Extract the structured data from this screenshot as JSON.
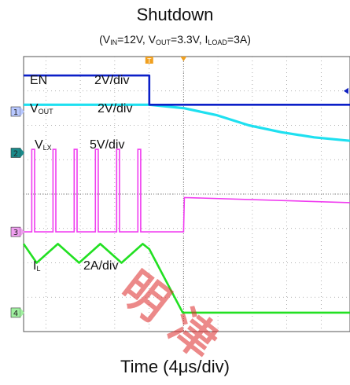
{
  "figure": {
    "title": "Shutdown",
    "subtitle": {
      "vin_prefix": "(V",
      "vin_sub": "IN",
      "vin_value": "=12V, V",
      "vout_sub": "OUT",
      "vout_value": "=3.3V, I",
      "iload_sub": "LOAD",
      "iload_value": "=3A)"
    },
    "xlabel": "Time (4μs/div)",
    "watermark": "明 津"
  },
  "channels": {
    "en": {
      "name": "EN",
      "scale": "2V/div",
      "color": "#0b1fc8"
    },
    "vout": {
      "name_main": "V",
      "name_sub": "OUT",
      "scale": "2V/div",
      "color": "#1ee0f0"
    },
    "vlx": {
      "name_main": "V",
      "name_sub": "LX",
      "scale": "5V/div",
      "color": "#f03cf0"
    },
    "il": {
      "name_main": "I",
      "name_sub": "L",
      "scale": "2A/div",
      "color": "#22e022"
    },
    "markers": {
      "ch1": "1",
      "ch2": "2",
      "ch3": "3",
      "ch4": "4",
      "trigger": "T"
    }
  },
  "chart_data": {
    "type": "line",
    "title": "Shutdown",
    "subtitle": "(VIN=12V, VOUT=3.3V, ILOAD=3A)",
    "xlabel": "Time (4μs/div)",
    "x_unit": "μs",
    "x_range": [
      -19.6,
      20.4
    ],
    "grid": true,
    "series": [
      {
        "name": "EN",
        "scale": "2V/div",
        "unit": "div",
        "x": [
          -19.6,
          -4.2,
          -4.2,
          20.4
        ],
        "y": [
          3.45,
          3.45,
          2.6,
          2.6
        ]
      },
      {
        "name": "VOUT",
        "scale": "2V/div",
        "unit": "div",
        "x": [
          -19.6,
          -4.2,
          0,
          4,
          8,
          12,
          16,
          20.4
        ],
        "y": [
          2.6,
          2.6,
          2.5,
          2.3,
          2.0,
          1.8,
          1.65,
          1.55
        ]
      },
      {
        "name": "VLX",
        "scale": "5V/div",
        "unit": "div",
        "switching_period_us": 2.6,
        "high_level_div": 1.3,
        "low_level_div": -1.1,
        "x": [
          -19.6,
          -4.2,
          0,
          0.1,
          20.4
        ],
        "y": [
          -1.1,
          -1.1,
          -1.1,
          -0.1,
          -0.25
        ]
      },
      {
        "name": "IL",
        "scale": "2A/div",
        "unit": "div",
        "x": [
          -19.6,
          -18.0,
          -15.4,
          -12.8,
          -10.2,
          -7.6,
          -5.0,
          -4.2,
          -0.1,
          20.4
        ],
        "y": [
          -1.45,
          -2.0,
          -1.45,
          -2.0,
          -1.45,
          -2.0,
          -1.45,
          -1.6,
          -3.45,
          -3.45
        ]
      }
    ]
  }
}
